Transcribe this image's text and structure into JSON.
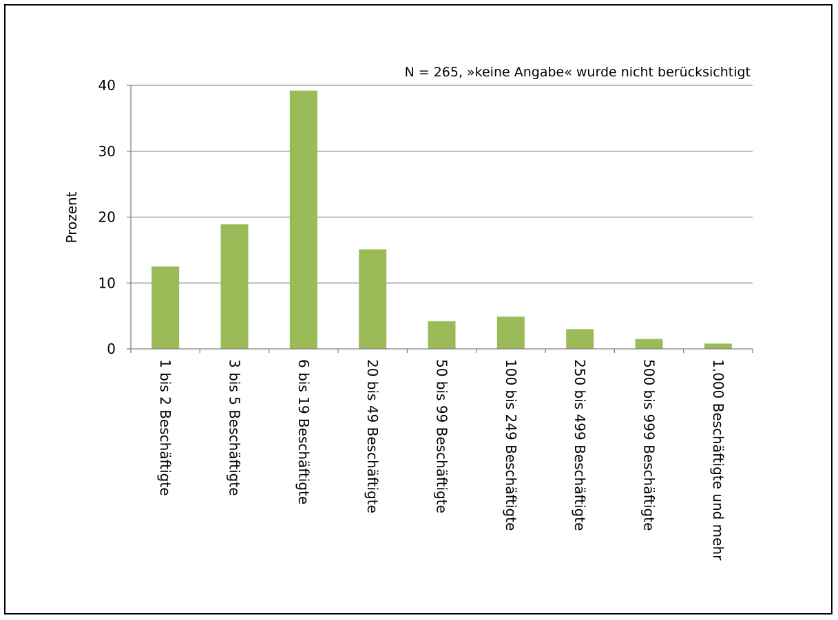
{
  "chart_data": {
    "type": "bar",
    "title": "",
    "annotation": "N = 265, »keine Angabe« wurde nicht berücksichtigt",
    "xlabel": "",
    "ylabel": "Prozent",
    "ylim": [
      0,
      40
    ],
    "yticks": [
      0,
      10,
      20,
      30,
      40
    ],
    "grid": true,
    "legend": "none",
    "bar_color": "#9BBB59",
    "categories": [
      "1 bis 2 Beschäftigte",
      "3 bis 5 Beschäftigte",
      "6 bis 19 Beschäftigte",
      "20 bis 49 Beschäftigte",
      "50 bis 99 Beschäftigte",
      "100 bis 249 Beschäftigte",
      "250 bis 499 Beschäftigte",
      "500 bis 999 Beschäftigte",
      "1.000 Beschäftigte und mehr"
    ],
    "values": [
      12.5,
      18.9,
      39.2,
      15.1,
      4.2,
      4.9,
      3.0,
      1.5,
      0.8
    ]
  }
}
